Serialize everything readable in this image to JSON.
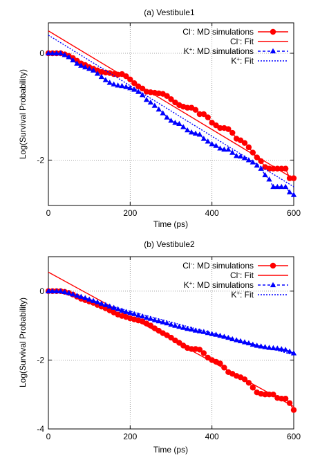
{
  "chart_data": [
    {
      "type": "line",
      "title": "(a) Vestibule1",
      "xlabel": "Time (ps)",
      "ylabel": "Log(Survival Probability)",
      "xlim": [
        0,
        600
      ],
      "ylim": [
        -2.85,
        0.57
      ],
      "xticks": [
        0,
        200,
        400,
        600
      ],
      "yticks": [
        0,
        -2
      ],
      "grid": "dotted lines at tick positions",
      "legend_position": "top-right",
      "series": [
        {
          "name": "Cl-: MD simulations",
          "label_base": "Cl",
          "label_sup": "-",
          "label_rest": ": MD simulations",
          "color": "#ff0000",
          "marker": "circle",
          "line": "solid",
          "x": [
            0,
            10,
            20,
            30,
            40,
            50,
            60,
            70,
            80,
            90,
            100,
            110,
            120,
            130,
            140,
            150,
            160,
            170,
            180,
            190,
            200,
            210,
            220,
            230,
            240,
            250,
            260,
            270,
            280,
            290,
            300,
            310,
            320,
            330,
            340,
            350,
            360,
            370,
            380,
            390,
            400,
            410,
            420,
            430,
            440,
            450,
            460,
            470,
            480,
            490,
            500,
            510,
            520,
            530,
            540,
            550,
            560,
            570,
            580,
            590,
            600
          ],
          "y": [
            0,
            0,
            0,
            0,
            -0.02,
            -0.05,
            -0.09,
            -0.14,
            -0.19,
            -0.22,
            -0.26,
            -0.29,
            -0.32,
            -0.35,
            -0.36,
            -0.37,
            -0.39,
            -0.4,
            -0.39,
            -0.43,
            -0.49,
            -0.56,
            -0.62,
            -0.66,
            -0.72,
            -0.73,
            -0.74,
            -0.75,
            -0.76,
            -0.8,
            -0.86,
            -0.92,
            -0.97,
            -1.0,
            -1.02,
            -1.02,
            -1.06,
            -1.14,
            -1.14,
            -1.2,
            -1.3,
            -1.35,
            -1.4,
            -1.4,
            -1.42,
            -1.49,
            -1.6,
            -1.63,
            -1.68,
            -1.76,
            -1.86,
            -1.95,
            -2.02,
            -2.13,
            -2.16,
            -2.16,
            -2.16,
            -2.16,
            -2.16,
            -2.34,
            -2.34
          ]
        },
        {
          "name": "Cl-: Fit",
          "label_base": "Cl",
          "label_sup": "-",
          "label_rest": ": Fit",
          "color": "#ff0000",
          "marker": "none",
          "line": "solid",
          "x": [
            0,
            600
          ],
          "y": [
            0.42,
            -2.35
          ]
        },
        {
          "name": "K+: MD simulations",
          "label_base": "K",
          "label_sup": "+",
          "label_rest": ": MD simulations",
          "color": "#0000ff",
          "marker": "triangle",
          "line": "dashed",
          "x": [
            0,
            10,
            20,
            30,
            40,
            50,
            60,
            70,
            80,
            90,
            100,
            110,
            120,
            130,
            140,
            150,
            160,
            170,
            180,
            190,
            200,
            210,
            220,
            230,
            240,
            250,
            260,
            270,
            280,
            290,
            300,
            310,
            320,
            330,
            340,
            350,
            360,
            370,
            380,
            390,
            400,
            410,
            420,
            430,
            440,
            450,
            460,
            470,
            480,
            490,
            500,
            510,
            520,
            530,
            540,
            550,
            560,
            570,
            580,
            590,
            600
          ],
          "y": [
            0,
            0,
            0,
            0,
            -0.03,
            -0.07,
            -0.13,
            -0.19,
            -0.23,
            -0.26,
            -0.29,
            -0.32,
            -0.38,
            -0.44,
            -0.5,
            -0.55,
            -0.58,
            -0.6,
            -0.61,
            -0.63,
            -0.65,
            -0.68,
            -0.72,
            -0.78,
            -0.87,
            -0.92,
            -0.98,
            -1.05,
            -1.12,
            -1.2,
            -1.26,
            -1.3,
            -1.32,
            -1.38,
            -1.44,
            -1.48,
            -1.5,
            -1.52,
            -1.6,
            -1.65,
            -1.7,
            -1.73,
            -1.78,
            -1.8,
            -1.8,
            -1.86,
            -1.92,
            -1.93,
            -1.96,
            -2.0,
            -2.04,
            -2.1,
            -2.16,
            -2.28,
            -2.36,
            -2.5,
            -2.5,
            -2.5,
            -2.5,
            -2.6,
            -2.65
          ]
        },
        {
          "name": "K+: Fit",
          "label_base": "K",
          "label_sup": "+",
          "label_rest": ": Fit",
          "color": "#0000ff",
          "marker": "none",
          "line": "dotted",
          "x": [
            0,
            600
          ],
          "y": [
            0.34,
            -2.5
          ]
        }
      ]
    },
    {
      "type": "line",
      "title": "(b) Vestibule2",
      "xlabel": "Time (ps)",
      "ylabel": "Log(Survival Probability)",
      "xlim": [
        0,
        600
      ],
      "ylim": [
        -4.0,
        1.0
      ],
      "xticks": [
        0,
        200,
        400,
        600
      ],
      "yticks": [
        0,
        -2,
        -4
      ],
      "grid": "dotted lines at tick positions",
      "legend_position": "top-right",
      "series": [
        {
          "name": "Cl-: MD simulations",
          "label_base": "Cl",
          "label_sup": "-",
          "label_rest": ": MD simulations",
          "color": "#ff0000",
          "marker": "circle",
          "line": "solid",
          "x": [
            0,
            10,
            20,
            30,
            40,
            50,
            60,
            70,
            80,
            90,
            100,
            110,
            120,
            130,
            140,
            150,
            160,
            170,
            180,
            190,
            200,
            210,
            220,
            230,
            240,
            250,
            260,
            270,
            280,
            290,
            300,
            310,
            320,
            330,
            340,
            350,
            360,
            370,
            380,
            390,
            400,
            410,
            420,
            430,
            440,
            450,
            460,
            470,
            480,
            490,
            500,
            510,
            520,
            530,
            540,
            550,
            560,
            570,
            580,
            590,
            600
          ],
          "y": [
            0,
            0,
            0,
            0,
            -0.02,
            -0.05,
            -0.1,
            -0.16,
            -0.22,
            -0.26,
            -0.3,
            -0.34,
            -0.4,
            -0.45,
            -0.5,
            -0.56,
            -0.62,
            -0.68,
            -0.72,
            -0.75,
            -0.79,
            -0.82,
            -0.85,
            -0.88,
            -0.94,
            -1.0,
            -1.08,
            -1.15,
            -1.22,
            -1.28,
            -1.35,
            -1.43,
            -1.5,
            -1.58,
            -1.65,
            -1.68,
            -1.68,
            -1.7,
            -1.8,
            -1.93,
            -2.0,
            -2.05,
            -2.1,
            -2.22,
            -2.35,
            -2.4,
            -2.46,
            -2.5,
            -2.56,
            -2.66,
            -2.8,
            -2.94,
            -2.98,
            -3.0,
            -3.0,
            -3.0,
            -3.1,
            -3.12,
            -3.12,
            -3.25,
            -3.45
          ]
        },
        {
          "name": "Cl-: Fit",
          "label_base": "Cl",
          "label_sup": "-",
          "label_rest": ": Fit",
          "color": "#ff0000",
          "marker": "none",
          "line": "solid",
          "x": [
            0,
            600
          ],
          "y": [
            0.55,
            -3.35
          ]
        },
        {
          "name": "K+: MD simulations",
          "label_base": "K",
          "label_sup": "+",
          "label_rest": ": MD simulations",
          "color": "#0000ff",
          "marker": "triangle",
          "line": "dashed",
          "x": [
            0,
            10,
            20,
            30,
            40,
            50,
            60,
            70,
            80,
            90,
            100,
            110,
            120,
            130,
            140,
            150,
            160,
            170,
            180,
            190,
            200,
            210,
            220,
            230,
            240,
            250,
            260,
            270,
            280,
            290,
            300,
            310,
            320,
            330,
            340,
            350,
            360,
            370,
            380,
            390,
            400,
            410,
            420,
            430,
            440,
            450,
            460,
            470,
            480,
            490,
            500,
            510,
            520,
            530,
            540,
            550,
            560,
            570,
            580,
            590,
            600
          ],
          "y": [
            0,
            0,
            0,
            0,
            -0.02,
            -0.05,
            -0.09,
            -0.13,
            -0.16,
            -0.2,
            -0.24,
            -0.28,
            -0.32,
            -0.36,
            -0.4,
            -0.44,
            -0.48,
            -0.52,
            -0.56,
            -0.6,
            -0.63,
            -0.66,
            -0.7,
            -0.73,
            -0.77,
            -0.8,
            -0.84,
            -0.87,
            -0.9,
            -0.93,
            -0.97,
            -1.0,
            -1.03,
            -1.06,
            -1.09,
            -1.11,
            -1.14,
            -1.16,
            -1.18,
            -1.21,
            -1.24,
            -1.26,
            -1.29,
            -1.32,
            -1.35,
            -1.39,
            -1.42,
            -1.45,
            -1.48,
            -1.51,
            -1.55,
            -1.58,
            -1.6,
            -1.62,
            -1.64,
            -1.65,
            -1.66,
            -1.68,
            -1.7,
            -1.75,
            -1.8
          ]
        },
        {
          "name": "K+: Fit",
          "label_base": "K",
          "label_sup": "+",
          "label_rest": ": Fit",
          "color": "#0000ff",
          "marker": "none",
          "line": "dotted",
          "x": [
            0,
            600
          ],
          "y": [
            0.05,
            -1.85
          ]
        }
      ]
    }
  ]
}
